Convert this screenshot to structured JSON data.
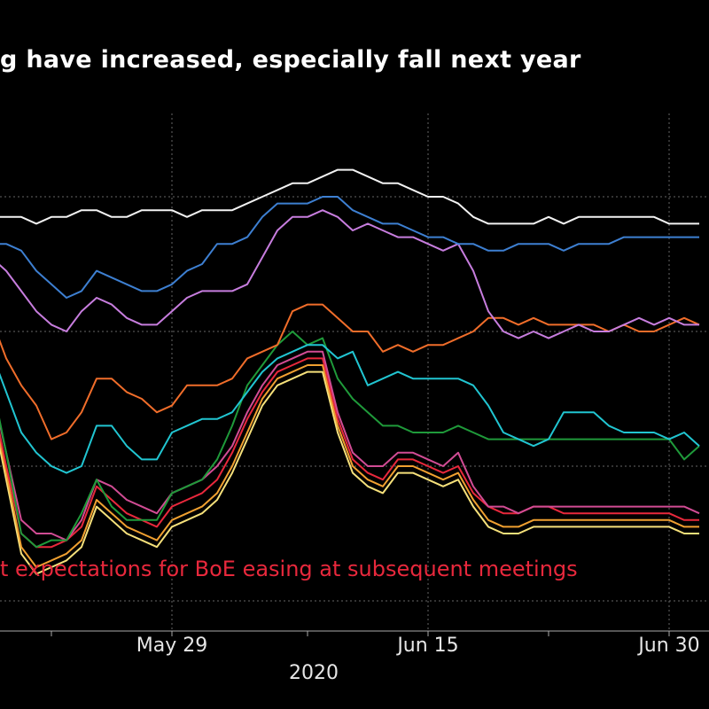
{
  "colors": {
    "background": "#000000",
    "title": "#ffffff",
    "annotation": "#e8283c",
    "grid": "#666666",
    "axis": "#aaaaaa",
    "tick_label": "#e6e6e6"
  },
  "chart_data": {
    "type": "line",
    "title": "g have increased, especially fall next year",
    "annotation": "t expectations for BoE easing at subsequent meetings",
    "xlabel": "2020",
    "ylabel": "",
    "x_tick_labels": [
      "May 29",
      "Jun 15",
      "Jun 30"
    ],
    "x_tick_indices": [
      12,
      29,
      45
    ],
    "x_minor_tick_indices": [
      4,
      21,
      37
    ],
    "grid": true,
    "ylim": [
      0,
      100
    ],
    "y_grid_values": [
      20,
      40,
      60,
      80
    ],
    "series": [
      {
        "color": "#f2f2f2",
        "values": [
          77,
          77,
          77,
          76,
          77,
          77,
          78,
          78,
          77,
          77,
          78,
          78,
          78,
          77,
          78,
          78,
          78,
          79,
          80,
          81,
          82,
          82,
          83,
          84,
          84,
          83,
          82,
          82,
          81,
          80,
          80,
          79,
          77,
          76,
          76,
          76,
          76,
          77,
          76,
          77,
          77,
          77,
          77,
          77,
          77,
          76,
          76,
          76
        ]
      },
      {
        "color": "#3d7fd1",
        "values": [
          73,
          73,
          72,
          69,
          67,
          65,
          66,
          69,
          68,
          67,
          66,
          66,
          67,
          69,
          70,
          73,
          73,
          74,
          77,
          79,
          79,
          79,
          80,
          80,
          78,
          77,
          76,
          76,
          75,
          74,
          74,
          73,
          73,
          72,
          72,
          73,
          73,
          73,
          72,
          73,
          73,
          73,
          74,
          74,
          74,
          74,
          74,
          74
        ]
      },
      {
        "color": "#c77dde",
        "values": [
          71,
          69,
          66,
          63,
          61,
          60,
          63,
          65,
          64,
          62,
          61,
          61,
          63,
          65,
          66,
          66,
          66,
          67,
          71,
          75,
          77,
          77,
          78,
          77,
          75,
          76,
          75,
          74,
          74,
          73,
          72,
          73,
          69,
          63,
          60,
          59,
          60,
          59,
          60,
          61,
          60,
          60,
          61,
          62,
          61,
          62,
          61,
          61
        ]
      },
      {
        "color": "#f06d2a",
        "values": [
          62,
          56,
          52,
          49,
          44,
          45,
          48,
          53,
          53,
          51,
          50,
          48,
          49,
          52,
          52,
          52,
          53,
          56,
          57,
          58,
          63,
          64,
          64,
          62,
          60,
          60,
          57,
          58,
          57,
          58,
          58,
          59,
          60,
          62,
          62,
          61,
          62,
          61,
          61,
          61,
          61,
          60,
          61,
          60,
          60,
          61,
          62,
          61
        ]
      },
      {
        "color": "#21c5d1",
        "values": [
          57,
          51,
          45,
          42,
          40,
          39,
          40,
          46,
          46,
          43,
          41,
          41,
          45,
          46,
          47,
          47,
          48,
          51,
          54,
          56,
          57,
          58,
          58,
          56,
          57,
          52,
          53,
          54,
          53,
          53,
          53,
          53,
          52,
          49,
          45,
          44,
          43,
          44,
          48,
          48,
          48,
          46,
          45,
          45,
          45,
          44,
          45,
          43
        ]
      },
      {
        "color": "#1f9a3a",
        "values": [
          53,
          42,
          30,
          28,
          29,
          29,
          33,
          38,
          34,
          32,
          32,
          32,
          36,
          37,
          38,
          41,
          46,
          52,
          55,
          58,
          60,
          58,
          59,
          53,
          50,
          48,
          46,
          46,
          45,
          45,
          45,
          46,
          45,
          44,
          44,
          44,
          44,
          44,
          44,
          44,
          44,
          44,
          44,
          44,
          44,
          44,
          41,
          43
        ]
      },
      {
        "color": "#d14c94",
        "values": [
          52,
          42,
          32,
          30,
          30,
          29,
          32,
          38,
          37,
          35,
          34,
          33,
          36,
          37,
          38,
          40,
          43,
          48,
          52,
          55,
          56,
          57,
          57,
          48,
          42,
          40,
          40,
          42,
          42,
          41,
          40,
          42,
          37,
          34,
          34,
          33,
          34,
          34,
          34,
          34,
          34,
          34,
          34,
          34,
          34,
          34,
          34,
          33
        ]
      },
      {
        "color": "#e8283c",
        "values": [
          51,
          40,
          30,
          28,
          28,
          29,
          31,
          37,
          35,
          33,
          32,
          31,
          34,
          35,
          36,
          38,
          42,
          47,
          51,
          54,
          55,
          56,
          56,
          47,
          41,
          39,
          38,
          41,
          41,
          40,
          39,
          40,
          36,
          34,
          33,
          33,
          34,
          34,
          33,
          33,
          33,
          33,
          33,
          33,
          33,
          33,
          32,
          32
        ]
      },
      {
        "color": "#f0a030",
        "values": [
          50,
          39,
          28,
          25,
          26,
          27,
          29,
          35,
          33,
          31,
          30,
          29,
          32,
          33,
          34,
          36,
          40,
          45,
          50,
          53,
          54,
          55,
          55,
          46,
          40,
          38,
          37,
          40,
          40,
          39,
          38,
          39,
          35,
          32,
          31,
          31,
          32,
          32,
          32,
          32,
          32,
          32,
          32,
          32,
          32,
          32,
          31,
          31
        ]
      },
      {
        "color": "#f5e07a",
        "values": [
          49,
          38,
          27,
          24,
          25,
          26,
          28,
          34,
          32,
          30,
          29,
          28,
          31,
          32,
          33,
          35,
          39,
          44,
          49,
          52,
          53,
          54,
          54,
          45,
          39,
          37,
          36,
          39,
          39,
          38,
          37,
          38,
          34,
          31,
          30,
          30,
          31,
          31,
          31,
          31,
          31,
          31,
          31,
          31,
          31,
          31,
          30,
          30
        ]
      },
      {
        "color": "#9a9a9a",
        "values": [
          49,
          38,
          27,
          24,
          25,
          26,
          28,
          34,
          32,
          30,
          29,
          28,
          31,
          32,
          33,
          35,
          39,
          44,
          49,
          52,
          53,
          54,
          54,
          45,
          39,
          37,
          36,
          39,
          39,
          38,
          37,
          38,
          34,
          31,
          30,
          30,
          31,
          31,
          31,
          31,
          31,
          31,
          31,
          31,
          31,
          31,
          30,
          30
        ]
      }
    ]
  }
}
